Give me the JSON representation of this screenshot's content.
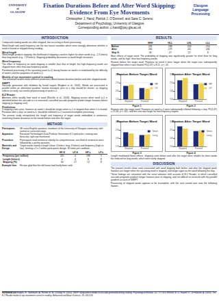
{
  "header": {
    "logo_left": [
      "UNIVERSITY",
      "of",
      "GLASGOW"
    ],
    "title": "Fixation Durations Before and After Word Skipping: Evidence From Eye Movements",
    "authors": "Christopher J. Hand, Patrick J. O'Donnell, and Sara C. Sereno",
    "department": "Department of Psychology, University of Glasgow",
    "corresponding": "Corresponding author: c.hand@psy.gla.ac.uk",
    "logo_right": [
      "Glasgow",
      "Language",
      "Processing"
    ]
  },
  "introduction": {
    "heading": "INTRODUCTION",
    "blocks": [
      {
        "subheading": "",
        "paragraphs": [
          "Compound reading words are often skipped, that occurring in fluent processing.",
          "Word length and word frequency are the two lexical variables which most strongly determine whether a word is fixated or skipped during reading."
        ]
      },
      {
        "subheading": "Word length",
        "paragraphs": [
          "Word length predicts skipping: the likelihood of skipping a word is higher for short words (e.g., 2-3 letters) than long words (e.g., 7-8 letters). Skipping probability decreases as word length increases."
        ]
      },
      {
        "subheading": "Word frequency",
        "paragraphs": [
          "The effect of frequency on word skipping is smaller than that of length, but high-frequency words are skipped more often than low-frequency words.",
          "Parafoveal processing of the upcoming word (n+1) during fixation on word n is modulated by the difficulty of word n and the properties of word n+1."
        ]
      },
      {
        "subheading": "Models of eye movement control in reading",
        "paragraphs": [
          "Two influential models make different predictions about fixation durations before and after skipped words:"
        ]
      },
      {
        "subheading": "SWIFT",
        "paragraphs": [
          "Saccade generation with inhibition by foveal targets (Engbert et al., 2005). Words are processed in parallel within an attentional gradient; fixation durations prior to a skip should be shorter, as skipping reflects an early, successful preprocessing of word n+1."
        ]
      },
      {
        "subheading": "E-Z Reader",
        "paragraphs": [
          "Attention shifts serially from word to word (Reichle et al., 2003). Skipping occurs when word n+1 is identified before the saccade to it is executed; cancelled saccade programs predict longer fixations before skipping (a skipping cost)."
        ]
      },
      {
        "subheading": "Predictions",
        "paragraphs": [
          "If skipping costs arise, fixations on word n should be longer when n+1 is skipped than when it is fixated. Fixations after a skip, on word n+2, should be inflated if n+1 received incomplete processing.",
          "The present study manipulated the length and frequency of target words embedded in sentences, examining fixation durations on the words before and after the target."
        ]
      }
    ]
  },
  "method": {
    "heading": "METHOD",
    "items": [
      {
        "label": "Participants",
        "text": "48 native English speakers, members of the University of Glasgow community, with normal or corrected vision."
      },
      {
        "label": "Apparatus",
        "text": "Fourward Technologies Dual-Purkinje Generation 6.1 eyetracker; viewing was binocular, right eye monitored."
      },
      {
        "label": "Procedure",
        "text": "Participants read sentences silently for comprehension; one third of sentences were followed by a yes/no question."
      },
      {
        "label": "Materials and Design",
        "text": "Target words varied in length (short: 4 letters; long: 8 letters) and frequency (high vs. low), forming a 2 x 2 within-participants design; 30 items per condition."
      }
    ],
    "table": {
      "header": [
        "",
        "HF-S",
        "LF-S",
        "HF-L",
        "LF-L"
      ],
      "rows": [
        [
          "Frequency (per million)",
          "231",
          "4",
          "198",
          "5"
        ],
        [
          "Length (letters)",
          "4",
          "4",
          "8",
          "8"
        ],
        [
          "Skipping (%)",
          "34",
          "27",
          "12",
          "8"
        ]
      ]
    },
    "example": {
      "label": "Example Item",
      "text": "He was glad that the old house had finally been sold."
    }
  },
  "results": {
    "heading": "RESULTS",
    "table": {
      "header": [
        "",
        "HHH",
        "HLL",
        "LHL",
        "LLL"
      ],
      "rows": [
        [
          "Before",
          "231",
          "238",
          "218",
          "214"
        ],
        [
          "After",
          "265",
          "279",
          "241",
          "246"
        ],
        [
          "Skip %",
          "34",
          "27",
          "12",
          "8"
        ]
      ]
    },
    "texts_top": [
      "Main effects of target word: The probability of skipping was significantly greater for short than for long words, and for high- than low-frequency words.",
      "Fixation before the target word: Fixations on word n were longer when the target was subsequently skipped than when it was fixated, F1(1,47) = 8.21, p < .01."
    ],
    "texts_mid": [
      "Fixation after the target word: Fixations on word n+2 were substantially inflated following a skip, F1(1,47) = 21.64, p < .001, and this cost was larger for low-frequency targets."
    ],
    "texts_bottom": [
      "Length modulated these effects: skipping costs before and after the target were reliable for short words but reduced for long words, which were rarely skipped."
    ]
  },
  "discussion": {
    "heading": "DISCUSSION",
    "paragraphs": [
      "The present results show costs associated with word skipping both before and after the skipped word: fixations are longer when the upcoming word is skipped, and longer again on the word following the skip.",
      "These findings are consistent with the serial attention shift account of E-Z Reader, in which cancelled saccade programs produce longer fixations prior to skipping, and are difficult to reconcile with the parallel gradient account of SWIFT.",
      "Processing of skipped words appears to be incomplete, with the cost carried over onto the following fixation."
    ]
  },
  "references": {
    "heading": "REFERENCES",
    "text": "Engbert, R., Nuthmann, A., Richter, E. M., & Kliegl, R. (2005). SWIFT: A dynamical model of saccade generation during reading. Psychological Review, 112, 777-813. Reichle, E. D., Rayner, K., & Pollatsek, A. (2003). The E-Z Reader model of eye-movement control in reading. Behavioral and Brain Sciences, 26, 445-526."
  },
  "chart_data": [
    {
      "type": "bar",
      "title": "Fixation Before Target Word",
      "caption": "Figure 1",
      "categories": [
        "Skipped",
        "Fixated"
      ],
      "series": [
        {
          "name": "HF",
          "color": "#1c2a78",
          "values": [
            231,
            218
          ]
        },
        {
          "name": "LF",
          "color": "#f0d048",
          "values": [
            238,
            214
          ]
        }
      ],
      "ylim": [
        150,
        300
      ],
      "yticks": [
        150,
        200,
        250,
        300
      ],
      "grid": true,
      "legend": "right"
    },
    {
      "type": "bar",
      "title": "Fixation After Target Word",
      "caption": "Figure 2",
      "categories": [
        "Skipped",
        "Fixated"
      ],
      "series": [
        {
          "name": "HF",
          "color": "#1c2a78",
          "values": [
            265,
            241
          ]
        },
        {
          "name": "LF",
          "color": "#f0d048",
          "values": [
            279,
            246
          ]
        }
      ],
      "ylim": [
        150,
        300
      ],
      "yticks": [
        150,
        200,
        250,
        300
      ],
      "grid": true,
      "legend": "right"
    },
    {
      "type": "bar",
      "title": "Fixation Before Target Word",
      "caption": "Figure 3",
      "categories": [
        "Skipped",
        "Fixated"
      ],
      "series": [
        {
          "name": "Short",
          "color": "#1c2a78",
          "values": [
            236,
            219
          ]
        },
        {
          "name": "Long",
          "color": "#f0d048",
          "values": [
            229,
            221
          ]
        }
      ],
      "ylim": [
        150,
        300
      ],
      "yticks": [
        150,
        200,
        250,
        300
      ],
      "grid": true,
      "legend": "right"
    },
    {
      "type": "bar",
      "title": "Fixation After Target Word",
      "caption": "Figure 4",
      "categories": [
        "Skipped",
        "Fixated"
      ],
      "series": [
        {
          "name": "Short",
          "color": "#1c2a78",
          "values": [
            272,
            243
          ]
        },
        {
          "name": "Long",
          "color": "#f0d048",
          "values": [
            258,
            247
          ]
        }
      ],
      "ylim": [
        150,
        300
      ],
      "yticks": [
        150,
        200,
        250,
        300
      ],
      "grid": true,
      "legend": "right"
    }
  ]
}
